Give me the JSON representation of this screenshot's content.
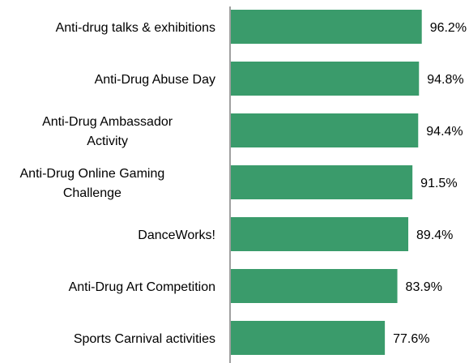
{
  "chart_data": {
    "type": "bar",
    "orientation": "horizontal",
    "categories": [
      "Anti-drug talks & exhibitions",
      "Anti-Drug Abuse Day",
      "Anti-Drug Ambassador Activity",
      "Anti-Drug Online Gaming Challenge",
      "DanceWorks!",
      "Anti-Drug Art Competition",
      "Sports Carnival activities"
    ],
    "category_lines": [
      [
        "Anti-drug talks & exhibitions"
      ],
      [
        "Anti-Drug Abuse Day"
      ],
      [
        "Anti-Drug Ambassador",
        "Activity"
      ],
      [
        "Anti-Drug Online Gaming",
        "Challenge"
      ],
      [
        "DanceWorks!"
      ],
      [
        "Anti-Drug Art Competition"
      ],
      [
        "Sports Carnival activities"
      ]
    ],
    "values": [
      96.2,
      94.8,
      94.4,
      91.5,
      89.4,
      83.9,
      77.6
    ],
    "value_labels": [
      "96.2%",
      "94.8%",
      "94.4%",
      "91.5%",
      "89.4%",
      "83.9%",
      "77.6%"
    ],
    "xlim": [
      0,
      100
    ],
    "grid": false,
    "legend": "none",
    "bar_color": "#3a9b6b",
    "axis_color": "#808080"
  }
}
